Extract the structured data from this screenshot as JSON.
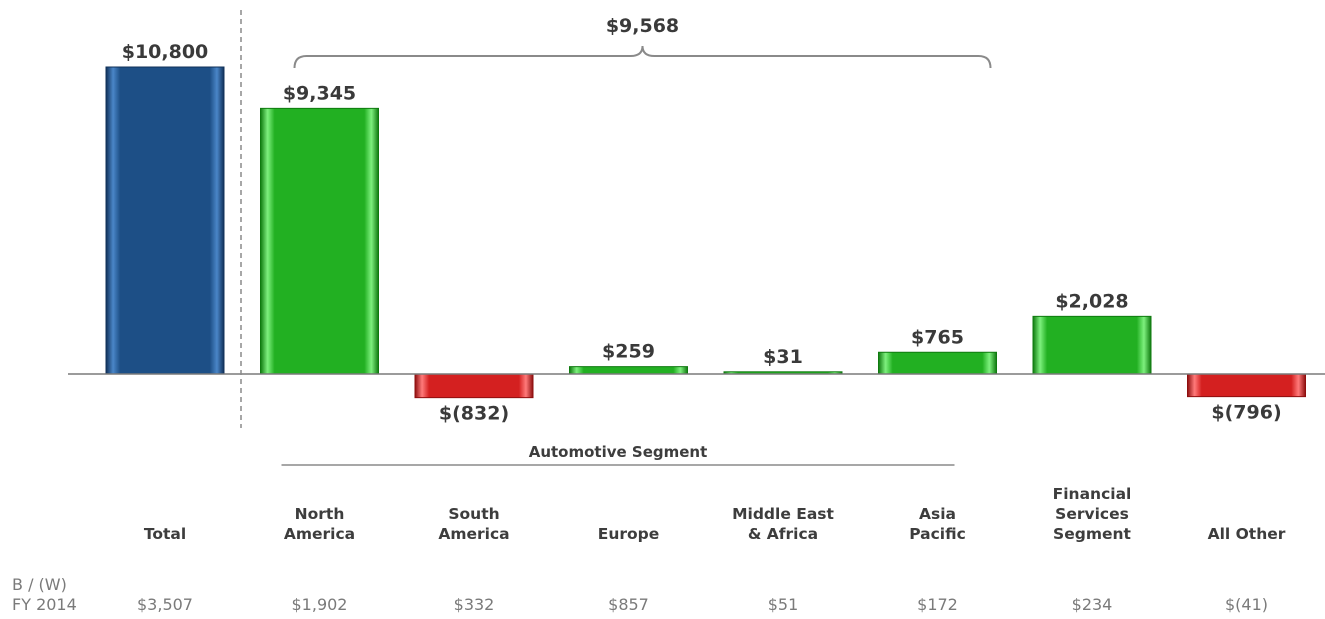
{
  "chart_data": {
    "type": "bar",
    "categories": [
      [
        "Total"
      ],
      [
        "North",
        "America"
      ],
      [
        "South",
        "America"
      ],
      [
        "Europe"
      ],
      [
        "Middle East",
        "& Africa"
      ],
      [
        "Asia",
        "Pacific"
      ],
      [
        "Financial",
        "Services",
        "Segment"
      ],
      [
        "All Other"
      ]
    ],
    "values": [
      10800,
      9345,
      -832,
      259,
      31,
      765,
      2028,
      -796
    ],
    "value_labels": [
      "$10,800",
      "$9,345",
      "$(832)",
      "$259",
      "$31",
      "$765",
      "$2,028",
      "$(796)"
    ],
    "bar_colors": [
      "blue",
      "green",
      "red",
      "green",
      "green",
      "green",
      "green",
      "red"
    ],
    "colors": {
      "blue": "#1d4f86",
      "green": "#22b022",
      "red": "#d42020",
      "axis": "#7a7a7a",
      "text": "#3a3a3a",
      "fy_text": "#7a7a7a"
    },
    "bracket": {
      "label": "$9,568",
      "from_index": 1,
      "to_index": 5
    },
    "segment_group": {
      "label": "Automotive Segment",
      "from_index": 1,
      "to_index": 5
    },
    "comparison_row": {
      "label_lines": [
        "B / (W)",
        "FY 2014"
      ],
      "values": [
        "$3,507",
        "$1,902",
        "$332",
        "$857",
        "$51",
        "$172",
        "$234",
        "$(41)"
      ]
    },
    "title": "",
    "xlabel": "",
    "ylabel": "",
    "ylim": [
      -832,
      10800
    ],
    "grid": false,
    "legend": "none"
  }
}
